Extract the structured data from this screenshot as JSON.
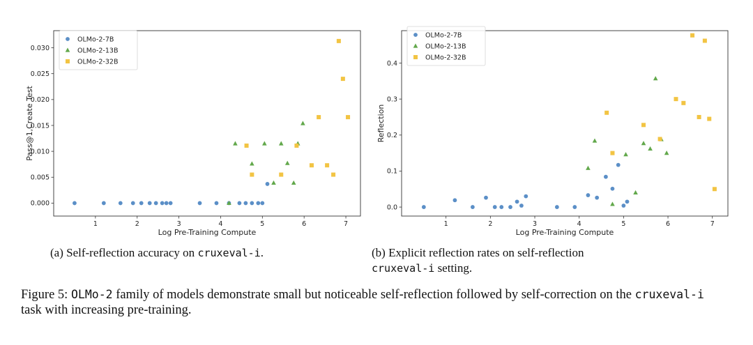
{
  "chart_data": [
    {
      "type": "scatter",
      "title": "",
      "xlabel": "Log Pre-Training Compute",
      "ylabel": "Pass@1,Create Test",
      "xlim": [
        0.0,
        7.35
      ],
      "ylim": [
        -0.0025,
        0.0333
      ],
      "xticks": [
        1,
        2,
        3,
        4,
        5,
        6,
        7
      ],
      "yticks": [
        0.0,
        0.005,
        0.01,
        0.015,
        0.02,
        0.025,
        0.03
      ],
      "ytick_labels": [
        "0.000",
        "0.005",
        "0.010",
        "0.015",
        "0.020",
        "0.025",
        "0.030"
      ],
      "legend_position": "top-left",
      "series": [
        {
          "name": "OLMo-2-7B",
          "marker": "circle",
          "color": "#5b8fc7",
          "points": [
            [
              0.5,
              0.0
            ],
            [
              1.2,
              0.0
            ],
            [
              1.6,
              0.0
            ],
            [
              1.9,
              0.0
            ],
            [
              2.1,
              0.0
            ],
            [
              2.3,
              0.0
            ],
            [
              2.45,
              0.0
            ],
            [
              2.6,
              0.0
            ],
            [
              2.7,
              0.0
            ],
            [
              2.8,
              0.0
            ],
            [
              3.5,
              0.0
            ],
            [
              3.9,
              0.0
            ],
            [
              4.2,
              0.0
            ],
            [
              4.45,
              0.0
            ],
            [
              4.6,
              0.0
            ],
            [
              4.75,
              0.0
            ],
            [
              4.9,
              0.0
            ],
            [
              5.0,
              0.0
            ],
            [
              5.12,
              0.0037
            ]
          ]
        },
        {
          "name": "OLMo-2-13B",
          "marker": "triangle",
          "color": "#62a84b",
          "points": [
            [
              4.2,
              0.0
            ],
            [
              4.35,
              0.0115
            ],
            [
              4.75,
              0.0076
            ],
            [
              5.05,
              0.0115
            ],
            [
              5.27,
              0.0039
            ],
            [
              5.45,
              0.0115
            ],
            [
              5.6,
              0.0077
            ],
            [
              5.75,
              0.0039
            ],
            [
              5.85,
              0.0115
            ],
            [
              5.97,
              0.0154
            ]
          ]
        },
        {
          "name": "OLMo-2-32B",
          "marker": "square",
          "color": "#f2c443",
          "points": [
            [
              4.62,
              0.0111
            ],
            [
              4.75,
              0.0055
            ],
            [
              5.45,
              0.0055
            ],
            [
              5.82,
              0.0111
            ],
            [
              6.18,
              0.0073
            ],
            [
              6.35,
              0.0166
            ],
            [
              6.55,
              0.0073
            ],
            [
              6.7,
              0.0055
            ],
            [
              6.83,
              0.0313
            ],
            [
              6.93,
              0.024
            ],
            [
              7.05,
              0.0166
            ]
          ]
        }
      ]
    },
    {
      "type": "scatter",
      "title": "",
      "xlabel": "Log Pre-Training Compute",
      "ylabel": "Reflection",
      "xlim": [
        0.0,
        7.35
      ],
      "ylim": [
        -0.025,
        0.49
      ],
      "xticks": [
        1,
        2,
        3,
        4,
        5,
        6,
        7
      ],
      "yticks": [
        0.0,
        0.1,
        0.2,
        0.3,
        0.4
      ],
      "ytick_labels": [
        "0.0",
        "0.1",
        "0.2",
        "0.3",
        "0.4"
      ],
      "legend_position": "top-left",
      "series": [
        {
          "name": "OLMo-2-7B",
          "marker": "circle",
          "color": "#5b8fc7",
          "points": [
            [
              0.5,
              0.0
            ],
            [
              1.2,
              0.019
            ],
            [
              1.6,
              0.0
            ],
            [
              1.9,
              0.026
            ],
            [
              2.1,
              0.0
            ],
            [
              2.25,
              0.0
            ],
            [
              2.45,
              0.0
            ],
            [
              2.6,
              0.015
            ],
            [
              2.7,
              0.004
            ],
            [
              2.8,
              0.03
            ],
            [
              3.5,
              0.0
            ],
            [
              3.9,
              0.0
            ],
            [
              4.2,
              0.033
            ],
            [
              4.4,
              0.026
            ],
            [
              4.6,
              0.084
            ],
            [
              4.75,
              0.051
            ],
            [
              4.88,
              0.117
            ],
            [
              5.0,
              0.004
            ],
            [
              5.08,
              0.015
            ]
          ]
        },
        {
          "name": "OLMo-2-13B",
          "marker": "triangle",
          "color": "#62a84b",
          "points": [
            [
              4.2,
              0.108
            ],
            [
              4.35,
              0.184
            ],
            [
              4.75,
              0.008
            ],
            [
              5.05,
              0.146
            ],
            [
              5.27,
              0.04
            ],
            [
              5.45,
              0.177
            ],
            [
              5.6,
              0.162
            ],
            [
              5.72,
              0.357
            ],
            [
              5.85,
              0.188
            ],
            [
              5.97,
              0.15
            ]
          ]
        },
        {
          "name": "OLMo-2-32B",
          "marker": "square",
          "color": "#f2c443",
          "points": [
            [
              4.62,
              0.262
            ],
            [
              4.75,
              0.15
            ],
            [
              5.45,
              0.228
            ],
            [
              5.82,
              0.189
            ],
            [
              6.18,
              0.3
            ],
            [
              6.35,
              0.289
            ],
            [
              6.55,
              0.477
            ],
            [
              6.7,
              0.25
            ],
            [
              6.83,
              0.462
            ],
            [
              6.93,
              0.245
            ],
            [
              7.05,
              0.05
            ]
          ]
        }
      ]
    }
  ],
  "captions": {
    "a_text": "(a) Self-reflection accuracy on ",
    "a_code": "cruxeval-i",
    "a_end": ".",
    "b_line1": "(b) Explicit reflection rates on self-reflection",
    "b_code": "cruxeval-i",
    "b_end": " setting."
  },
  "figure_caption": {
    "label": "Figure 5: ",
    "code1": "OLMo-2",
    "text1": " family of models demonstrate small but noticeable self-reflection followed by self-correction on the ",
    "code2": "cruxeval-i",
    "text2": " task with increasing pre-training."
  }
}
